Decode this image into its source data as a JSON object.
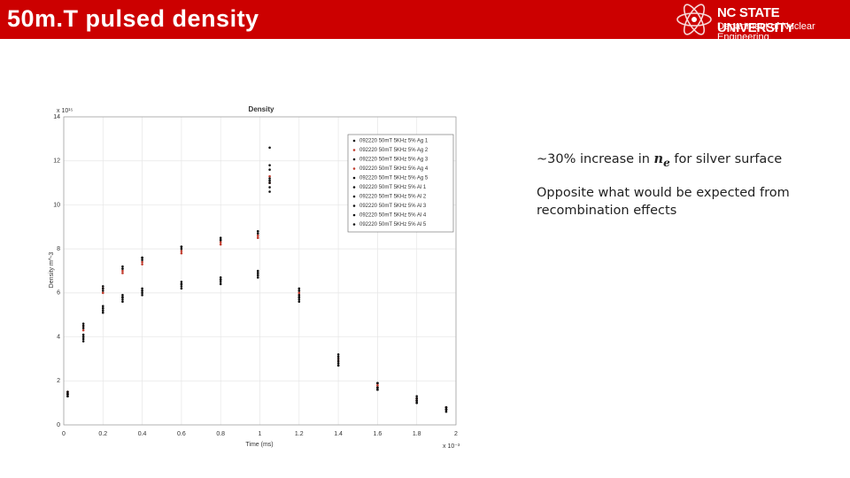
{
  "header": {
    "title": "50m.T pulsed density"
  },
  "logo": {
    "name": "NC STATE UNIVERSITY",
    "department": "Department of Nuclear Engineering"
  },
  "chart_data": {
    "type": "scatter",
    "title": "Density",
    "x_label": "Time (ms)",
    "y_label": "Density m^-3",
    "x_exponent": "x 10⁻³",
    "y_exponent": "x 10¹⁵",
    "x": [
      0.02,
      0.1,
      0.2,
      0.3,
      0.4,
      0.6,
      0.8,
      0.99,
      1.05,
      1.2,
      1.4,
      1.6,
      1.8,
      1.95
    ],
    "xlim": [
      0,
      2
    ],
    "ylim": [
      0,
      14
    ],
    "xticks": [
      0,
      0.2,
      0.4,
      0.6,
      0.8,
      1,
      1.2,
      1.4,
      1.6,
      1.8,
      2
    ],
    "yticks": [
      0,
      2,
      4,
      6,
      8,
      10,
      12,
      14
    ],
    "series": [
      {
        "name": "092220 50mT 5KHz 5% Ag 1",
        "color": "#111111",
        "values": [
          1.5,
          4.6,
          6.3,
          7.2,
          7.6,
          8.1,
          8.5,
          8.8,
          11.6,
          6.1,
          3.1,
          1.9,
          1.2,
          0.8
        ]
      },
      {
        "name": "092220 50mT 5KHz 5% Ag 2",
        "color": "#c0392b",
        "values": [
          1.5,
          4.5,
          6.2,
          7.0,
          7.4,
          7.9,
          8.3,
          8.6,
          11.3,
          6.0,
          3.0,
          1.8,
          1.2,
          0.8
        ]
      },
      {
        "name": "092220 50mT 5KHz 5% Ag 3",
        "color": "#111111",
        "values": [
          1.4,
          4.4,
          6.1,
          7.1,
          7.5,
          8.0,
          8.4,
          8.7,
          11.8,
          6.2,
          3.2,
          1.9,
          1.3,
          0.8
        ]
      },
      {
        "name": "092220 50mT 5KHz 5% Ag 4",
        "color": "#c0392b",
        "values": [
          1.4,
          4.3,
          6.0,
          6.9,
          7.3,
          7.8,
          8.2,
          8.5,
          11.0,
          5.9,
          2.9,
          1.8,
          1.1,
          0.7
        ]
      },
      {
        "name": "092220 50mT 5KHz 5% Ag 5",
        "color": "#111111",
        "values": [
          1.5,
          4.5,
          6.2,
          7.1,
          7.6,
          8.1,
          8.4,
          8.8,
          12.6,
          6.1,
          3.0,
          1.9,
          1.2,
          0.8
        ]
      },
      {
        "name": "092220 50mT 5KHz 5% Al 1",
        "color": "#111111",
        "values": [
          1.4,
          4.0,
          5.3,
          5.8,
          6.1,
          6.4,
          6.6,
          6.9,
          11.0,
          5.8,
          2.8,
          1.7,
          1.1,
          0.7
        ]
      },
      {
        "name": "092220 50mT 5KHz 5% Al 2",
        "color": "#111111",
        "values": [
          1.3,
          3.9,
          5.2,
          5.7,
          6.0,
          6.3,
          6.5,
          6.8,
          10.8,
          5.7,
          2.7,
          1.6,
          1.0,
          0.7
        ]
      },
      {
        "name": "092220 50mT 5KHz 5% Al 3",
        "color": "#111111",
        "values": [
          1.4,
          4.1,
          5.4,
          5.9,
          6.2,
          6.5,
          6.7,
          7.0,
          11.2,
          5.9,
          2.9,
          1.7,
          1.1,
          0.7
        ]
      },
      {
        "name": "092220 50mT 5KHz 5% Al 4",
        "color": "#111111",
        "values": [
          1.3,
          3.8,
          5.1,
          5.6,
          5.9,
          6.2,
          6.4,
          6.7,
          10.6,
          5.6,
          2.7,
          1.6,
          1.0,
          0.6
        ]
      },
      {
        "name": "092220 50mT 5KHz 5% Al 5",
        "color": "#111111",
        "values": [
          1.4,
          4.0,
          5.3,
          5.8,
          6.1,
          6.4,
          6.6,
          6.9,
          11.1,
          5.8,
          2.8,
          1.7,
          1.1,
          0.7
        ]
      }
    ]
  },
  "bullets": [
    {
      "before": "~30% increase in ",
      "math": "n",
      "subscript": "e",
      "after": " for silver surface"
    },
    {
      "text": "Opposite what would be expected from recombination effects"
    }
  ]
}
